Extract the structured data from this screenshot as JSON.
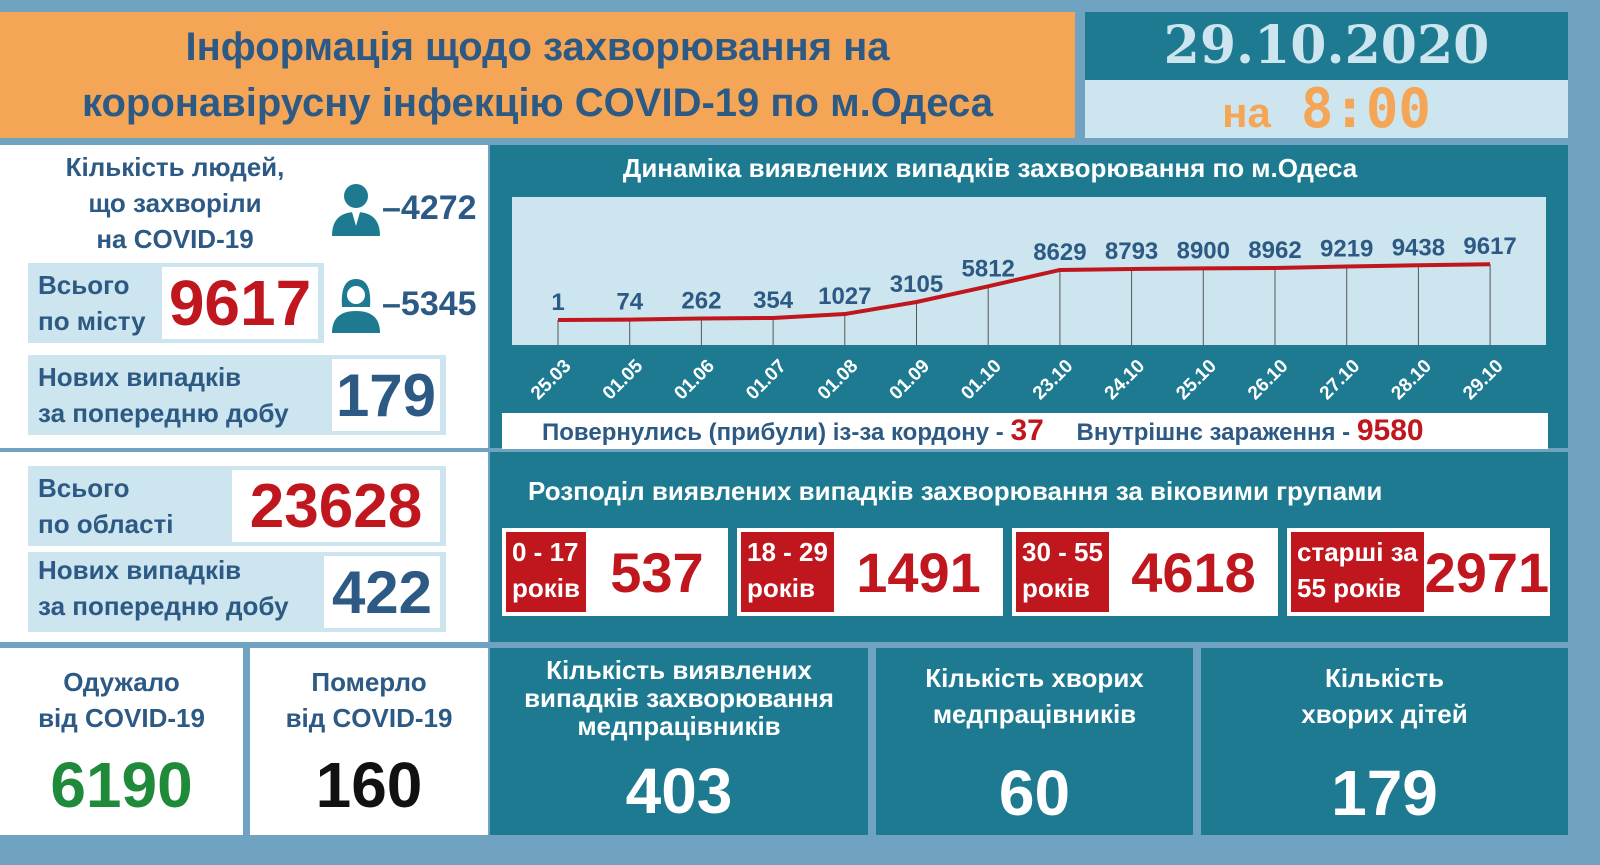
{
  "header": {
    "title_line1": "Інформація щодо захворювання на",
    "title_line2": "коронавірусну інфекцію COVID-19 по м.Одеса",
    "date": "29.10.2020",
    "time_prefix": "на",
    "time": "8:00"
  },
  "city": {
    "people_l1": "Кількість людей,",
    "people_l2": "що захворіли",
    "people_l3": "на COVID-19",
    "male_icon": "man-icon",
    "male_count": "–4272",
    "female_icon": "woman-icon",
    "female_count": "–5345",
    "total_l1": "Всього",
    "total_l2": "по місту",
    "total": "9617",
    "new_l1": "Нових випадків",
    "new_l2": "за попередню добу",
    "new": "179"
  },
  "region": {
    "total_l1": "Всього",
    "total_l2": "по області",
    "total": "23628",
    "new_l1": "Нових випадків",
    "new_l2": "за попередню добу",
    "new": "422"
  },
  "chart_data": {
    "type": "line",
    "title": "Динаміка виявлених випадків захворювання по м.Одеса",
    "categories": [
      "25.03",
      "01.05",
      "01.06",
      "01.07",
      "01.08",
      "01.09",
      "01.10",
      "23.10",
      "24.10",
      "25.10",
      "26.10",
      "27.10",
      "28.10",
      "29.10"
    ],
    "values": [
      1,
      74,
      262,
      354,
      1027,
      3105,
      5812,
      8629,
      8793,
      8900,
      8962,
      9219,
      9438,
      9617
    ],
    "line_color": "#c0171f",
    "grid": false
  },
  "origin": {
    "returned_label": "Повернулись (прибули) із-за кордону -",
    "returned": "37",
    "internal_label": "Внутрішнє зараження  -",
    "internal": "9580"
  },
  "age": {
    "title": "Розподіл виявлених випадків захворювання за віковими групами",
    "groups": [
      {
        "l1": "0 - 17",
        "l2": "років",
        "value": "537"
      },
      {
        "l1": "18 - 29",
        "l2": "років",
        "value": "1491"
      },
      {
        "l1": "30 - 55",
        "l2": "років",
        "value": "4618"
      },
      {
        "l1": "старші за",
        "l2": "55 років",
        "value": "2971"
      }
    ]
  },
  "bottom": {
    "recovered_l1": "Одужало",
    "recovered_l2": "від COVID-19",
    "recovered": "6190",
    "died_l1": "Померло",
    "died_l2": "від COVID-19",
    "died": "160",
    "med_cases_l1": "Кількість виявлених",
    "med_cases_l2": "випадків захворювання",
    "med_cases_l3": "медпрацівників",
    "med_cases": "403",
    "med_sick_l1": "Кількість хворих",
    "med_sick_l2": "медпрацівників",
    "med_sick": "60",
    "kids_l1": "Кількість",
    "kids_l2": "хворих дітей",
    "kids": "179"
  },
  "colors": {
    "orange": "#f5a556",
    "teal": "#1d7a91",
    "dark_blue": "#2d5a84",
    "red": "#c0171f",
    "green": "#1e8a3a",
    "pale_blue": "#cde5ee"
  }
}
